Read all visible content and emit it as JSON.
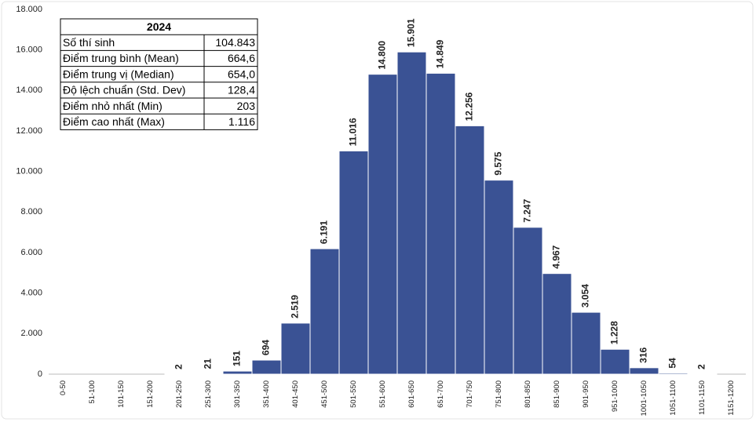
{
  "chart_data": {
    "type": "bar",
    "categories": [
      "0-50",
      "51-100",
      "101-150",
      "151-200",
      "201-250",
      "251-300",
      "301-350",
      "351-400",
      "401-450",
      "451-500",
      "501-550",
      "551-600",
      "601-650",
      "651-700",
      "701-750",
      "751-800",
      "801-850",
      "851-900",
      "901-950",
      "951-1000",
      "1001-1050",
      "1051-1100",
      "1101-1150",
      "1151-1200"
    ],
    "values": [
      0,
      0,
      0,
      0,
      2,
      21,
      151,
      694,
      2519,
      6191,
      11016,
      14800,
      15901,
      14849,
      12256,
      9575,
      7247,
      4967,
      3054,
      1228,
      316,
      54,
      2,
      0
    ],
    "value_labels": [
      null,
      null,
      null,
      null,
      "2",
      "21",
      "151",
      "694",
      "2.519",
      "6.191",
      "11.016",
      "14.800",
      "15.901",
      "14.849",
      "12.256",
      "9.575",
      "7.247",
      "4.967",
      "3.054",
      "1.228",
      "316",
      "54",
      "2",
      null
    ],
    "color": "#3a5294",
    "ylim": [
      0,
      18000
    ],
    "yticks": [
      0,
      {
        "value": 2000,
        "label": "2.000"
      },
      {
        "value": 4000,
        "label": "4.000"
      },
      {
        "value": 6000,
        "label": "6.000"
      },
      {
        "value": 8000,
        "label": "8.000"
      },
      {
        "value": 10000,
        "label": "10.000"
      },
      {
        "value": 12000,
        "label": "12.000"
      },
      {
        "value": 14000,
        "label": "14.000"
      },
      {
        "value": 16000,
        "label": "16.000"
      },
      {
        "value": 18000,
        "label": "18.000"
      }
    ],
    "grid": false,
    "table": {
      "title": "2024",
      "rows": [
        [
          "Số thí sinh",
          "104.843"
        ],
        [
          "Điểm trung bình (Mean)",
          "664,6"
        ],
        [
          "Điểm trung vị (Median)",
          "654,0"
        ],
        [
          "Độ lệch chuẩn (Std. Dev)",
          "128,4"
        ],
        [
          "Điểm nhỏ nhất (Min)",
          "203"
        ],
        [
          "Điểm cao nhất (Max)",
          "1.116"
        ]
      ]
    }
  }
}
